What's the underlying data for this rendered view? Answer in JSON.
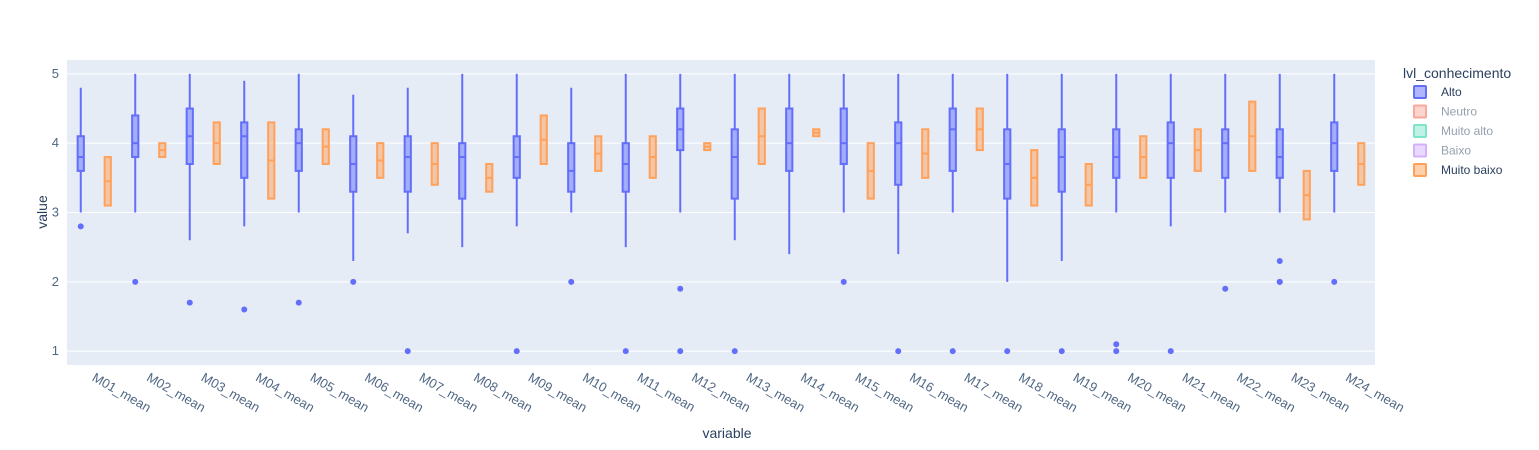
{
  "chart_data": {
    "type": "box",
    "xlabel": "variable",
    "ylabel": "value",
    "ylim": [
      0.8,
      5.2
    ],
    "y_ticks": [
      "1",
      "2",
      "3",
      "4",
      "5"
    ],
    "grid": true,
    "legend_position": "right",
    "legend_title": "lvl_conhecimento",
    "categories": [
      "M01_mean",
      "M02_mean",
      "M03_mean",
      "M04_mean",
      "M05_mean",
      "M06_mean",
      "M07_mean",
      "M08_mean",
      "M09_mean",
      "M10_mean",
      "M11_mean",
      "M12_mean",
      "M13_mean",
      "M14_mean",
      "M15_mean",
      "M16_mean",
      "M17_mean",
      "M18_mean",
      "M19_mean",
      "M20_mean",
      "M21_mean",
      "M22_mean",
      "M23_mean",
      "M24_mean"
    ],
    "series": [
      {
        "name": "Alto",
        "color": "#636efa",
        "visible": true,
        "boxes": [
          {
            "min": 3.0,
            "q1": 3.6,
            "median": 3.8,
            "q3": 4.1,
            "max": 4.8,
            "outliers": [
              2.8
            ]
          },
          {
            "min": 3.0,
            "q1": 3.8,
            "median": 4.0,
            "q3": 4.4,
            "max": 5.0,
            "outliers": [
              2.0
            ]
          },
          {
            "min": 2.6,
            "q1": 3.7,
            "median": 4.1,
            "q3": 4.5,
            "max": 5.0,
            "outliers": [
              1.7
            ]
          },
          {
            "min": 2.8,
            "q1": 3.5,
            "median": 4.1,
            "q3": 4.3,
            "max": 4.9,
            "outliers": [
              1.6
            ]
          },
          {
            "min": 3.0,
            "q1": 3.6,
            "median": 4.0,
            "q3": 4.2,
            "max": 5.0,
            "outliers": [
              1.7
            ]
          },
          {
            "min": 2.3,
            "q1": 3.3,
            "median": 3.7,
            "q3": 4.1,
            "max": 4.7,
            "outliers": [
              2.0
            ]
          },
          {
            "min": 2.7,
            "q1": 3.3,
            "median": 3.8,
            "q3": 4.1,
            "max": 4.8,
            "outliers": [
              1.0
            ]
          },
          {
            "min": 2.5,
            "q1": 3.2,
            "median": 3.8,
            "q3": 4.0,
            "max": 5.0,
            "outliers": []
          },
          {
            "min": 2.8,
            "q1": 3.5,
            "median": 3.8,
            "q3": 4.1,
            "max": 5.0,
            "outliers": [
              1.0
            ]
          },
          {
            "min": 3.0,
            "q1": 3.3,
            "median": 3.6,
            "q3": 4.0,
            "max": 4.8,
            "outliers": [
              2.0
            ]
          },
          {
            "min": 2.5,
            "q1": 3.3,
            "median": 3.7,
            "q3": 4.0,
            "max": 5.0,
            "outliers": [
              1.0
            ]
          },
          {
            "min": 3.0,
            "q1": 3.9,
            "median": 4.2,
            "q3": 4.5,
            "max": 5.0,
            "outliers": [
              1.9,
              1.0
            ]
          },
          {
            "min": 2.6,
            "q1": 3.2,
            "median": 3.8,
            "q3": 4.2,
            "max": 5.0,
            "outliers": [
              1.0
            ]
          },
          {
            "min": 2.4,
            "q1": 3.6,
            "median": 4.0,
            "q3": 4.5,
            "max": 5.0,
            "outliers": []
          },
          {
            "min": 3.0,
            "q1": 3.7,
            "median": 4.0,
            "q3": 4.5,
            "max": 5.0,
            "outliers": [
              2.0
            ]
          },
          {
            "min": 2.4,
            "q1": 3.4,
            "median": 4.0,
            "q3": 4.3,
            "max": 5.0,
            "outliers": [
              1.0
            ]
          },
          {
            "min": 3.0,
            "q1": 3.6,
            "median": 4.2,
            "q3": 4.5,
            "max": 5.0,
            "outliers": [
              1.0
            ]
          },
          {
            "min": 2.0,
            "q1": 3.2,
            "median": 3.7,
            "q3": 4.2,
            "max": 5.0,
            "outliers": [
              1.0
            ]
          },
          {
            "min": 2.3,
            "q1": 3.3,
            "median": 3.8,
            "q3": 4.2,
            "max": 5.0,
            "outliers": [
              1.0
            ]
          },
          {
            "min": 3.0,
            "q1": 3.5,
            "median": 3.8,
            "q3": 4.2,
            "max": 5.0,
            "outliers": [
              1.1,
              1.0
            ]
          },
          {
            "min": 2.8,
            "q1": 3.5,
            "median": 4.0,
            "q3": 4.3,
            "max": 5.0,
            "outliers": [
              1.0
            ]
          },
          {
            "min": 3.0,
            "q1": 3.5,
            "median": 4.0,
            "q3": 4.2,
            "max": 5.0,
            "outliers": [
              1.9
            ]
          },
          {
            "min": 3.0,
            "q1": 3.5,
            "median": 3.8,
            "q3": 4.2,
            "max": 5.0,
            "outliers": [
              2.3,
              2.0,
              2.0
            ]
          },
          {
            "min": 3.0,
            "q1": 3.6,
            "median": 4.0,
            "q3": 4.3,
            "max": 5.0,
            "outliers": [
              2.0
            ]
          }
        ]
      },
      {
        "name": "Muito baixo",
        "color": "#ffa15a",
        "visible": true,
        "boxes": [
          {
            "min": 3.1,
            "q1": 3.1,
            "median": 3.45,
            "q3": 3.8,
            "max": 3.8,
            "outliers": []
          },
          {
            "min": 3.8,
            "q1": 3.8,
            "median": 3.9,
            "q3": 4.0,
            "max": 4.0,
            "outliers": []
          },
          {
            "min": 3.7,
            "q1": 3.7,
            "median": 4.0,
            "q3": 4.3,
            "max": 4.3,
            "outliers": []
          },
          {
            "min": 3.2,
            "q1": 3.2,
            "median": 3.75,
            "q3": 4.3,
            "max": 4.3,
            "outliers": []
          },
          {
            "min": 3.7,
            "q1": 3.7,
            "median": 3.95,
            "q3": 4.2,
            "max": 4.2,
            "outliers": []
          },
          {
            "min": 3.5,
            "q1": 3.5,
            "median": 3.75,
            "q3": 4.0,
            "max": 4.0,
            "outliers": []
          },
          {
            "min": 3.4,
            "q1": 3.4,
            "median": 3.7,
            "q3": 4.0,
            "max": 4.0,
            "outliers": []
          },
          {
            "min": 3.3,
            "q1": 3.3,
            "median": 3.5,
            "q3": 3.7,
            "max": 3.7,
            "outliers": []
          },
          {
            "min": 3.7,
            "q1": 3.7,
            "median": 4.05,
            "q3": 4.4,
            "max": 4.4,
            "outliers": []
          },
          {
            "min": 3.6,
            "q1": 3.6,
            "median": 3.85,
            "q3": 4.1,
            "max": 4.1,
            "outliers": []
          },
          {
            "min": 3.5,
            "q1": 3.5,
            "median": 3.8,
            "q3": 4.1,
            "max": 4.1,
            "outliers": []
          },
          {
            "min": 3.9,
            "q1": 3.9,
            "median": 3.95,
            "q3": 4.0,
            "max": 4.0,
            "outliers": []
          },
          {
            "min": 3.7,
            "q1": 3.7,
            "median": 4.1,
            "q3": 4.5,
            "max": 4.5,
            "outliers": []
          },
          {
            "min": 4.1,
            "q1": 4.1,
            "median": 4.15,
            "q3": 4.2,
            "max": 4.2,
            "outliers": []
          },
          {
            "min": 3.2,
            "q1": 3.2,
            "median": 3.6,
            "q3": 4.0,
            "max": 4.0,
            "outliers": []
          },
          {
            "min": 3.5,
            "q1": 3.5,
            "median": 3.85,
            "q3": 4.2,
            "max": 4.2,
            "outliers": []
          },
          {
            "min": 3.9,
            "q1": 3.9,
            "median": 4.2,
            "q3": 4.5,
            "max": 4.5,
            "outliers": []
          },
          {
            "min": 3.1,
            "q1": 3.1,
            "median": 3.5,
            "q3": 3.9,
            "max": 3.9,
            "outliers": []
          },
          {
            "min": 3.1,
            "q1": 3.1,
            "median": 3.4,
            "q3": 3.7,
            "max": 3.7,
            "outliers": []
          },
          {
            "min": 3.5,
            "q1": 3.5,
            "median": 3.8,
            "q3": 4.1,
            "max": 4.1,
            "outliers": []
          },
          {
            "min": 3.6,
            "q1": 3.6,
            "median": 3.9,
            "q3": 4.2,
            "max": 4.2,
            "outliers": []
          },
          {
            "min": 3.6,
            "q1": 3.6,
            "median": 4.1,
            "q3": 4.6,
            "max": 4.6,
            "outliers": []
          },
          {
            "min": 2.9,
            "q1": 2.9,
            "median": 3.25,
            "q3": 3.6,
            "max": 3.6,
            "outliers": []
          },
          {
            "min": 3.4,
            "q1": 3.4,
            "median": 3.7,
            "q3": 4.0,
            "max": 4.0,
            "outliers": []
          }
        ]
      }
    ],
    "legend": [
      {
        "name": "Alto",
        "color": "#636efa",
        "visible": true
      },
      {
        "name": "Neutro",
        "color": "#ef553b",
        "visible": false
      },
      {
        "name": "Muito alto",
        "color": "#00cc96",
        "visible": false
      },
      {
        "name": "Baixo",
        "color": "#ab63fa",
        "visible": false
      },
      {
        "name": "Muito baixo",
        "color": "#ffa15a",
        "visible": true
      }
    ]
  }
}
